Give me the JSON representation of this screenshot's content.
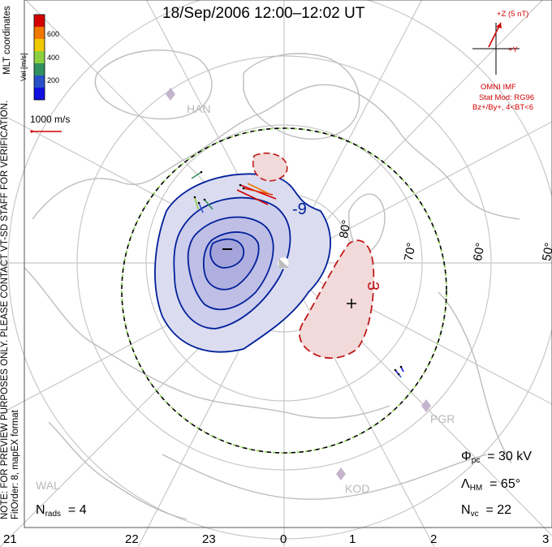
{
  "title": "18/Sep/2006 12:00–12:02 UT",
  "side_note": {
    "line1": "NOTE: FOR PREVIEW PURPOSES ONLY. PLEASE CONTACT VT-SD STAFF FOR VERIFICATION.",
    "line2": "FitOrder: 8, mapEX format"
  },
  "colorbar": {
    "label": "Vel [m/s]",
    "coord_label": "MLT coordinates",
    "ticks": [
      "600",
      "400",
      "200"
    ],
    "colors": [
      "#d40000",
      "#f07800",
      "#f0c800",
      "#8cd040",
      "#309060",
      "#2850c8",
      "#1010e0"
    ]
  },
  "reference_vector": {
    "label": "1000 m/s",
    "color": "#d40000"
  },
  "imf": {
    "z_label": "+Z (5 nT)",
    "y_label": "+Y",
    "source": "OMNI IMF",
    "model": "Stat Mod: RG96",
    "condition": "Bz+/By+, 4<BT<6",
    "color": "#d00000"
  },
  "contours": {
    "negative_label": "-9",
    "positive_label": "3",
    "negative_color": "#00209a",
    "positive_color": "#c01818"
  },
  "latitude_labels": [
    "80°",
    "70°",
    "60°",
    "50°"
  ],
  "mlt_labels": [
    "21",
    "22",
    "23",
    "0",
    "1",
    "2",
    "3"
  ],
  "sites": [
    "HAN",
    "PGR",
    "KOD",
    "WAL"
  ],
  "stats": {
    "phi_pc": {
      "symbol": "Φ",
      "sub": "pc",
      "value": "= 30 kV"
    },
    "lambda_hm": {
      "symbol": "Λ",
      "sub": "HM",
      "value": "= 65°"
    },
    "n_vc": {
      "symbol": "N",
      "sub": "vc",
      "value": "= 22"
    },
    "n_rads": {
      "symbol": "N",
      "sub": "rads",
      "value": "= 4"
    }
  }
}
